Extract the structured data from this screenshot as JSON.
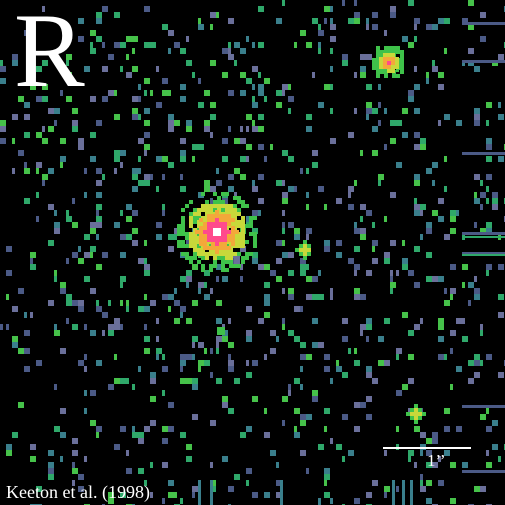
{
  "image": {
    "band_label": "R",
    "scale_label": "1’’",
    "credit": "Keeton et al. (1998)",
    "palette": {
      "background": "#000000",
      "noise": [
        "#3a7f8c",
        "#4b5a86",
        "#2fa86a",
        "#46c24a",
        "#6a6f9a"
      ],
      "core": "#ffffff",
      "inner": "#ff4a8c",
      "ring_warm": "#f3a83a",
      "ring_yellow": "#c8d83a",
      "halo": "#3fc24a"
    }
  }
}
